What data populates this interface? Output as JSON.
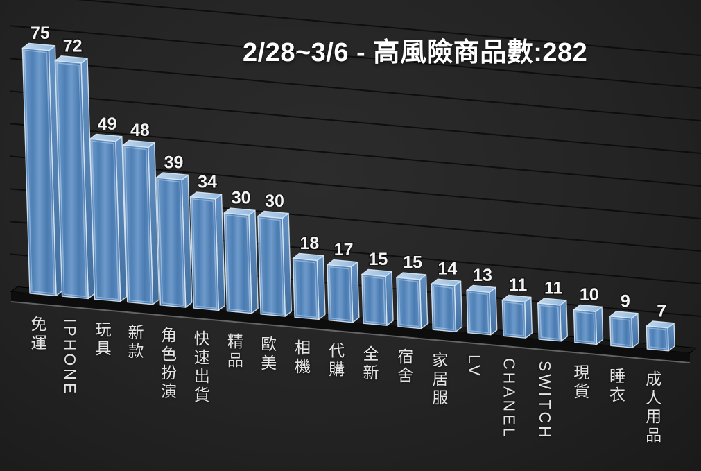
{
  "chart_data": {
    "type": "bar",
    "style": "3d-column",
    "title": "2/28~3/6 - 高風險商品數:282",
    "categories": [
      "免運",
      "IPHONE",
      "玩具",
      "新款",
      "角色扮演",
      "快速出貨",
      "精品",
      "歐美",
      "相機",
      "代購",
      "全新",
      "宿舍",
      "家居服",
      "LV",
      "CHANEL",
      "SWITCH",
      "現貨",
      "睡衣",
      "成人用品"
    ],
    "values": [
      75,
      72,
      49,
      48,
      39,
      34,
      30,
      30,
      18,
      17,
      15,
      15,
      14,
      13,
      11,
      11,
      10,
      9,
      7
    ],
    "xlabel": "",
    "ylabel": "",
    "ylim": [
      0,
      90
    ],
    "gridline_step": 10,
    "grid": true,
    "legend": false,
    "data_labels": true,
    "axis_tick_labels_visible": false,
    "colors": {
      "background": "#242424",
      "bar_front": "#5588bd",
      "bar_front_light": "#a9c6e2",
      "bar_top": "#a6c6e4",
      "bar_side": "#4c7dae",
      "bar_edge": "#d9e8f4",
      "gridline": "#0a0a0a",
      "floor": "#181818",
      "floor_face": "#0d0d0d",
      "floor_bottom_edge": "#7a7a7a",
      "value_text": "#f4f4f4",
      "category_text": "#e4e4e4",
      "title_text": "#ffffff"
    }
  }
}
